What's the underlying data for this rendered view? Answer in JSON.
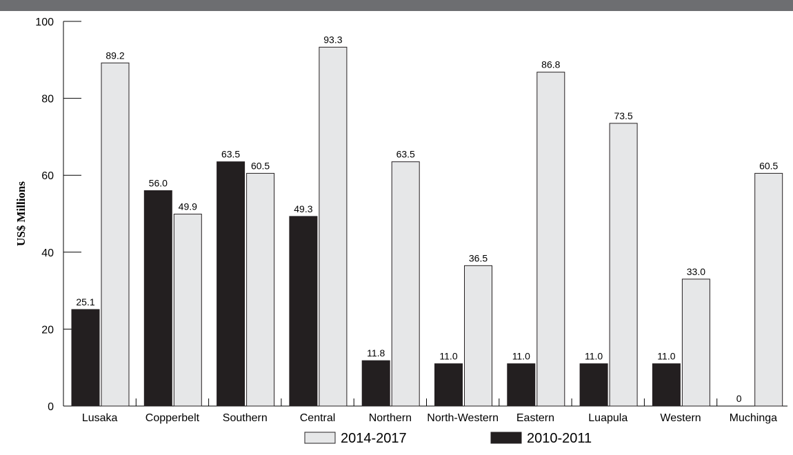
{
  "chart_data": {
    "type": "bar",
    "title": "",
    "xlabel": "",
    "ylabel": "US$ Millions",
    "ylim": [
      0,
      100
    ],
    "yticks": [
      0,
      20,
      40,
      60,
      80,
      100
    ],
    "grid": false,
    "legend_position": "bottom",
    "categories": [
      "Lusaka",
      "Copperbelt",
      "Southern",
      "Central",
      "Northern",
      "North-Western",
      "Eastern",
      "Luapula",
      "Western",
      "Muchinga"
    ],
    "series": [
      {
        "name": "2010-2011",
        "color": "#231f20",
        "values": [
          25.1,
          56.0,
          63.5,
          49.3,
          11.8,
          11.0,
          11.0,
          11.0,
          11.0,
          0
        ],
        "labels": [
          "25.1",
          "56.0",
          "63.5",
          "49.3",
          "11.8",
          "11.0",
          "11.0",
          "11.0",
          "11.0",
          "0"
        ]
      },
      {
        "name": "2014-2017",
        "color": "#e6e7e8",
        "values": [
          89.2,
          49.9,
          60.5,
          93.3,
          63.5,
          36.5,
          86.8,
          73.5,
          33.0,
          60.5
        ],
        "labels": [
          "89.2",
          "49.9",
          "60.5",
          "93.3",
          "63.5",
          "36.5",
          "86.8",
          "73.5",
          "33.0",
          "60.5"
        ]
      }
    ],
    "legend": [
      {
        "name": "2014-2017",
        "color": "#e6e7e8"
      },
      {
        "name": "2010-2011",
        "color": "#231f20"
      }
    ]
  },
  "header_band_color": "#6d6e71"
}
